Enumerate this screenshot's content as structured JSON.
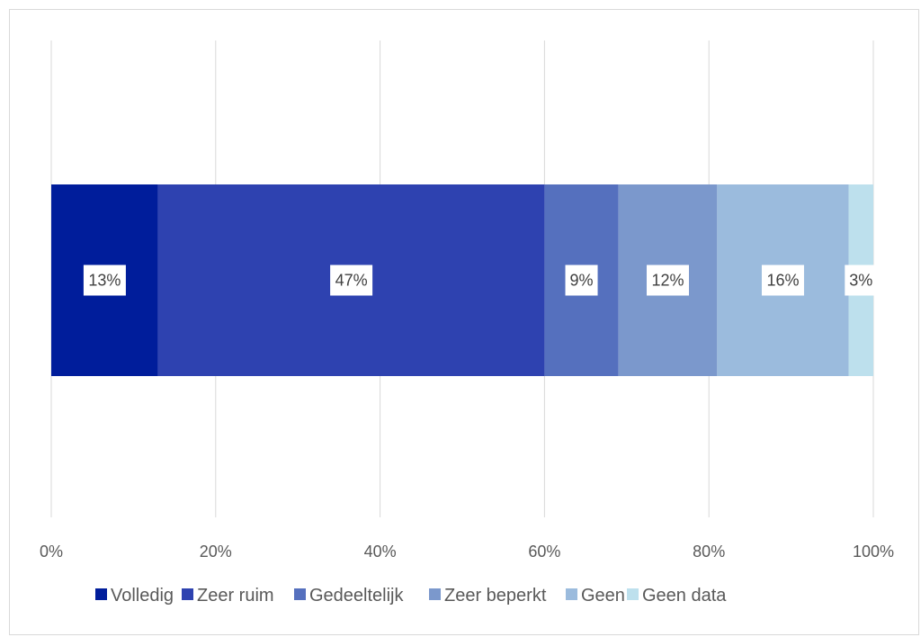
{
  "chart_data": {
    "type": "bar",
    "orientation": "horizontal",
    "stacked": true,
    "categories": [
      ""
    ],
    "series": [
      {
        "name": "Volledig",
        "values": [
          13
        ],
        "label": "13%",
        "color": "#001d9b"
      },
      {
        "name": "Zeer ruim",
        "values": [
          47
        ],
        "label": "47%",
        "color": "#2e42b0"
      },
      {
        "name": "Gedeeltelijk",
        "values": [
          9
        ],
        "label": "9%",
        "color": "#5570be"
      },
      {
        "name": "Zeer beperkt",
        "values": [
          12
        ],
        "label": "12%",
        "color": "#7b98cc"
      },
      {
        "name": "Geen",
        "values": [
          16
        ],
        "label": "16%",
        "color": "#9bbbdd"
      },
      {
        "name": "Geen data",
        "values": [
          3
        ],
        "label": "3%",
        "color": "#bde0ed"
      }
    ],
    "xlim": [
      0,
      100
    ],
    "xticks": [
      0,
      20,
      40,
      60,
      80,
      100
    ],
    "xtick_labels": [
      "0%",
      "20%",
      "40%",
      "60%",
      "80%",
      "100%"
    ],
    "grid": "vertical",
    "legend": "bottom",
    "title": "",
    "xlabel": "",
    "ylabel": ""
  }
}
